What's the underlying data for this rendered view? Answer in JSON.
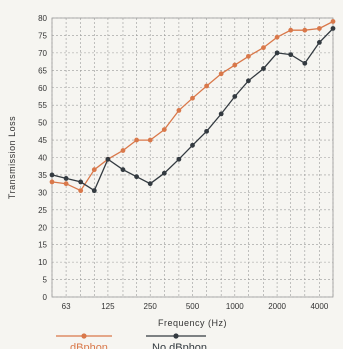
{
  "chart_data": {
    "type": "line",
    "title": "",
    "xlabel": "Frequency (Hz)",
    "ylabel": "Transmission Loss",
    "x_scale": "log",
    "xlim": [
      50,
      5000
    ],
    "ylim": [
      0,
      80
    ],
    "y_ticks": [
      0,
      5,
      10,
      15,
      20,
      25,
      30,
      35,
      40,
      45,
      50,
      55,
      60,
      65,
      70,
      75,
      80
    ],
    "x_ticks": [
      {
        "value": 63,
        "label": "63"
      },
      {
        "value": 125,
        "label": "125"
      },
      {
        "value": 250,
        "label": "250"
      },
      {
        "value": 500,
        "label": "500"
      },
      {
        "value": 1000,
        "label": "1000"
      },
      {
        "value": 2000,
        "label": "2000"
      },
      {
        "value": 4000,
        "label": "4000"
      }
    ],
    "grid": true,
    "legend_position": "bottom",
    "x": [
      50,
      63,
      80,
      100,
      125,
      160,
      200,
      250,
      315,
      400,
      500,
      630,
      800,
      1000,
      1250,
      1600,
      2000,
      2500,
      3150,
      4000,
      5000
    ],
    "series": [
      {
        "name": "dBphon",
        "color": "#d9784a",
        "values": [
          33,
          32.5,
          30.5,
          36.5,
          39.5,
          42,
          45,
          45,
          48,
          53.5,
          57,
          60.5,
          64,
          66.5,
          69,
          71.5,
          74.5,
          76.5,
          76.5,
          77,
          79
        ]
      },
      {
        "name": "No dBphon",
        "color": "#333a40",
        "values": [
          35,
          34,
          33,
          30.5,
          39.5,
          36.5,
          34.5,
          32.5,
          35.5,
          39.5,
          43.5,
          47.5,
          52.5,
          57.5,
          62,
          65.5,
          70,
          69.5,
          67,
          73,
          77
        ]
      }
    ]
  }
}
